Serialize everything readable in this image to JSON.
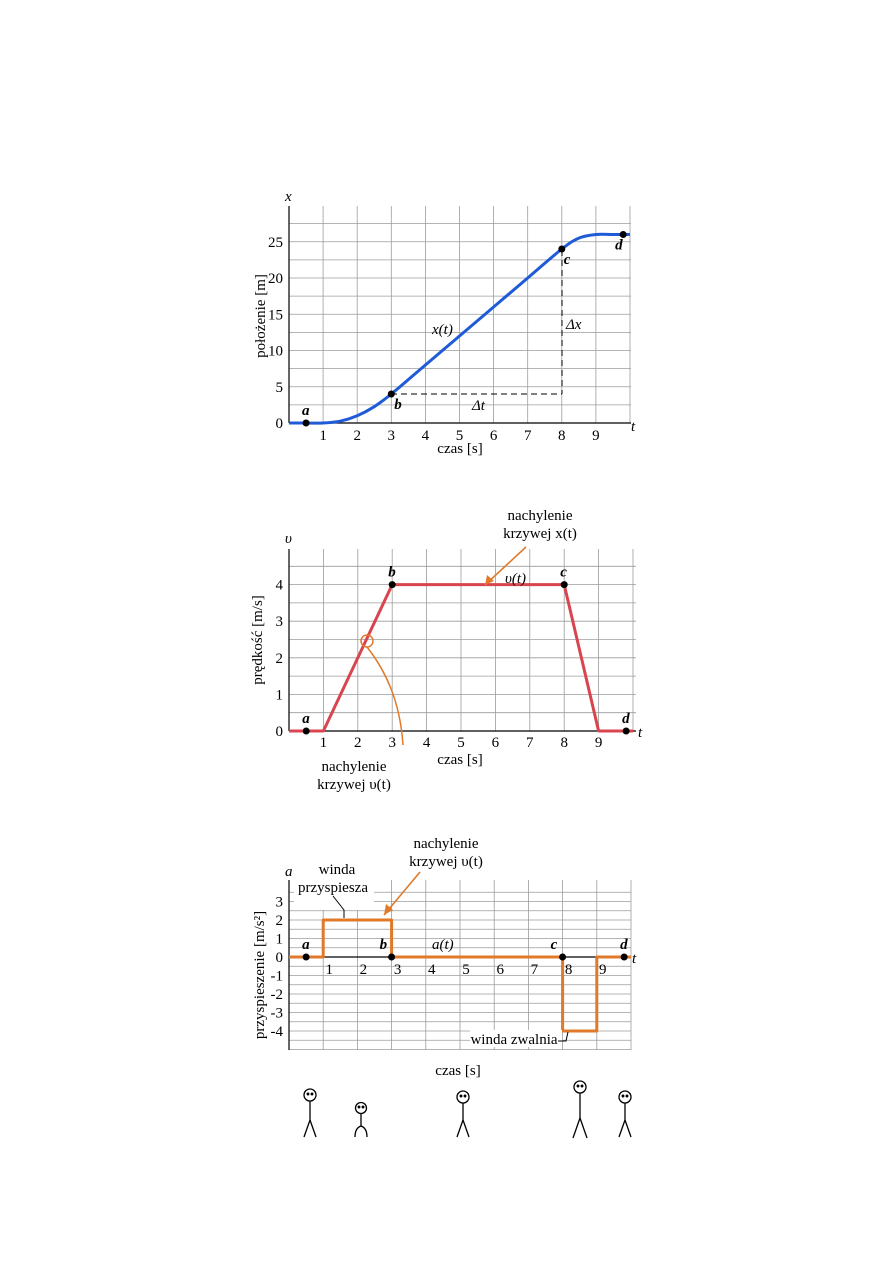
{
  "colors": {
    "position": "#1f5bd6",
    "velocity": "#d8454f",
    "acceleration": "#e07a2a",
    "annotation": "#e07a2a",
    "grid": "#9c9c9c"
  },
  "chart_data": [
    {
      "type": "line",
      "xlabel": "czas [s]",
      "ylabel": "położenie [m]",
      "x_axis_symbol": "t",
      "y_axis_symbol": "x",
      "xlim": [
        0,
        10
      ],
      "ylim": [
        0,
        28
      ],
      "grid": true,
      "x_ticks": [
        "1",
        "2",
        "3",
        "4",
        "5",
        "6",
        "7",
        "8",
        "9"
      ],
      "y_ticks": [
        "0",
        "5",
        "10",
        "15",
        "20",
        "25"
      ],
      "series": [
        {
          "name": "x(t)",
          "x": [
            0,
            0.5,
            1,
            1.5,
            2,
            2.5,
            3,
            4,
            5,
            6,
            7,
            8,
            8.5,
            9,
            9.5,
            10
          ],
          "y": [
            0,
            0,
            0,
            0.25,
            1,
            2.25,
            4,
            8,
            12,
            16,
            20,
            24,
            25.5,
            26,
            26,
            26
          ]
        }
      ],
      "points": [
        {
          "label": "a",
          "x": 0.5,
          "y": 0
        },
        {
          "label": "b",
          "x": 3,
          "y": 4
        },
        {
          "label": "c",
          "x": 8,
          "y": 24
        },
        {
          "label": "d",
          "x": 9.8,
          "y": 26
        }
      ],
      "annotations": [
        {
          "text": "x(t)"
        },
        {
          "text": "Δt"
        },
        {
          "text": "Δx"
        }
      ]
    },
    {
      "type": "line",
      "xlabel": "czas [s]",
      "ylabel": "prędkość [m/s]",
      "x_axis_symbol": "t",
      "y_axis_symbol": "υ",
      "xlim": [
        0,
        10
      ],
      "ylim": [
        0,
        5
      ],
      "grid": true,
      "x_ticks": [
        "1",
        "2",
        "3",
        "4",
        "5",
        "6",
        "7",
        "8",
        "9"
      ],
      "y_ticks": [
        "0",
        "1",
        "2",
        "3",
        "4"
      ],
      "series": [
        {
          "name": "υ(t)",
          "x": [
            0,
            1,
            3,
            8,
            9,
            10
          ],
          "y": [
            0,
            0,
            4,
            4,
            0,
            0
          ]
        }
      ],
      "points": [
        {
          "label": "a",
          "x": 0.5,
          "y": 0
        },
        {
          "label": "b",
          "x": 3,
          "y": 4
        },
        {
          "label": "c",
          "x": 8,
          "y": 4
        },
        {
          "label": "d",
          "x": 9.8,
          "y": 0
        }
      ],
      "annotations": [
        {
          "text_line1": "nachylenie",
          "text_line2": "krzywej x(t)"
        },
        {
          "text_line1": "nachylenie",
          "text_line2": "krzywej υ(t)"
        }
      ]
    },
    {
      "type": "line",
      "xlabel": "czas [s]",
      "ylabel": "przyspieszenie [m/s²]",
      "x_axis_symbol": "t",
      "y_axis_symbol": "a",
      "xlim": [
        0,
        10
      ],
      "ylim": [
        -5,
        3.5
      ],
      "grid": true,
      "x_ticks": [
        "1",
        "2",
        "3",
        "4",
        "5",
        "6",
        "7",
        "8",
        "9"
      ],
      "y_ticks": [
        "3",
        "2",
        "1",
        "0",
        "-1",
        "-2",
        "-3",
        "-4"
      ],
      "series": [
        {
          "name": "a(t)",
          "x": [
            0,
            1,
            1,
            3,
            3,
            8,
            8,
            9,
            9,
            10
          ],
          "y": [
            0,
            0,
            2,
            2,
            0,
            0,
            -4,
            -4,
            0,
            0
          ]
        }
      ],
      "points": [
        {
          "label": "a",
          "x": 0.5,
          "y": 0
        },
        {
          "label": "b",
          "x": 3,
          "y": 0
        },
        {
          "label": "c",
          "x": 8,
          "y": 0
        },
        {
          "label": "d",
          "x": 9.8,
          "y": 0
        }
      ],
      "annotations": [
        {
          "text_line1": "nachylenie",
          "text_line2": "krzywej υ(t)"
        },
        {
          "text_line1": "winda",
          "text_line2": "przyspiesza"
        },
        {
          "text": "winda zwalnia"
        },
        {
          "text": "a(t)"
        }
      ]
    }
  ],
  "figures_row": [
    "stick-figure",
    "stick-figure-crouched",
    "stick-figure",
    "stick-figure-tall",
    "stick-figure"
  ]
}
